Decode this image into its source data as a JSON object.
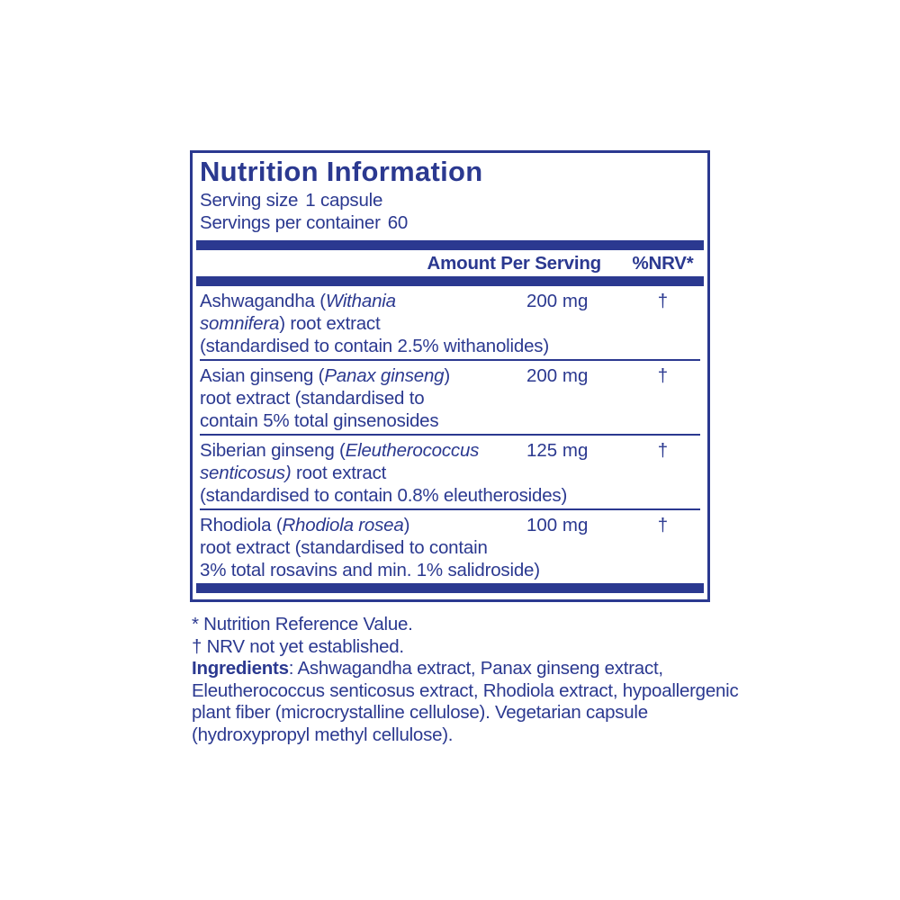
{
  "colors": {
    "ink": "#2b3990",
    "background": "#ffffff"
  },
  "panel": {
    "title": "Nutrition Information",
    "serving_size": {
      "label": "Serving size",
      "value": "1 capsule"
    },
    "servings_per_container": {
      "label": "Servings per container",
      "value": "60"
    },
    "columns": {
      "amount": "Amount Per Serving",
      "nrv": "%NRV*"
    },
    "rows": [
      {
        "name_lines": [
          [
            {
              "t": "Ashwagandha ("
            },
            {
              "t": "Withania",
              "i": true
            }
          ],
          [
            {
              "t": "somnifera",
              "i": true
            },
            {
              "t": ") root extract"
            }
          ],
          [
            {
              "t": "(standardised to contain 2.5% withanolides)"
            }
          ]
        ],
        "amount": "200 mg",
        "nrv": "†"
      },
      {
        "name_lines": [
          [
            {
              "t": "Asian ginseng ("
            },
            {
              "t": "Panax ginseng",
              "i": true
            },
            {
              "t": ")"
            }
          ],
          [
            {
              "t": "root extract (standardised to"
            }
          ],
          [
            {
              "t": "contain 5% total ginsenosides"
            }
          ]
        ],
        "amount": "200 mg",
        "nrv": "†"
      },
      {
        "name_lines": [
          [
            {
              "t": "Siberian ginseng ("
            },
            {
              "t": "Eleutherococcus",
              "i": true
            }
          ],
          [
            {
              "t": "senticosus)",
              "i": true
            },
            {
              "t": " root extract"
            }
          ],
          [
            {
              "t": "(standardised to contain 0.8% eleutherosides)"
            }
          ]
        ],
        "amount": "125 mg",
        "nrv": "†"
      },
      {
        "name_lines": [
          [
            {
              "t": "Rhodiola ("
            },
            {
              "t": "Rhodiola rosea",
              "i": true
            },
            {
              "t": ")"
            }
          ],
          [
            {
              "t": "root extract (standardised to contain"
            }
          ],
          [
            {
              "t": "3% total rosavins and min. 1% salidroside)"
            }
          ]
        ],
        "amount": "100 mg",
        "nrv": "†"
      }
    ]
  },
  "footnotes": {
    "nrv_reference": "* Nutrition Reference Value.",
    "nrv_not_established": "† NRV not yet established."
  },
  "ingredients_lines": [
    [
      {
        "t": "Ingredients",
        "b": true
      },
      {
        "t": ": Ashwagandha extract, Panax ginseng extract,"
      }
    ],
    [
      {
        "t": "Eleutherococcus senticosus extract, Rhodiola extract, hypoallergenic"
      }
    ],
    [
      {
        "t": "plant fiber (microcrystalline cellulose). Vegetarian capsule"
      }
    ],
    [
      {
        "t": "(hydroxypropyl methyl cellulose)."
      }
    ]
  ]
}
